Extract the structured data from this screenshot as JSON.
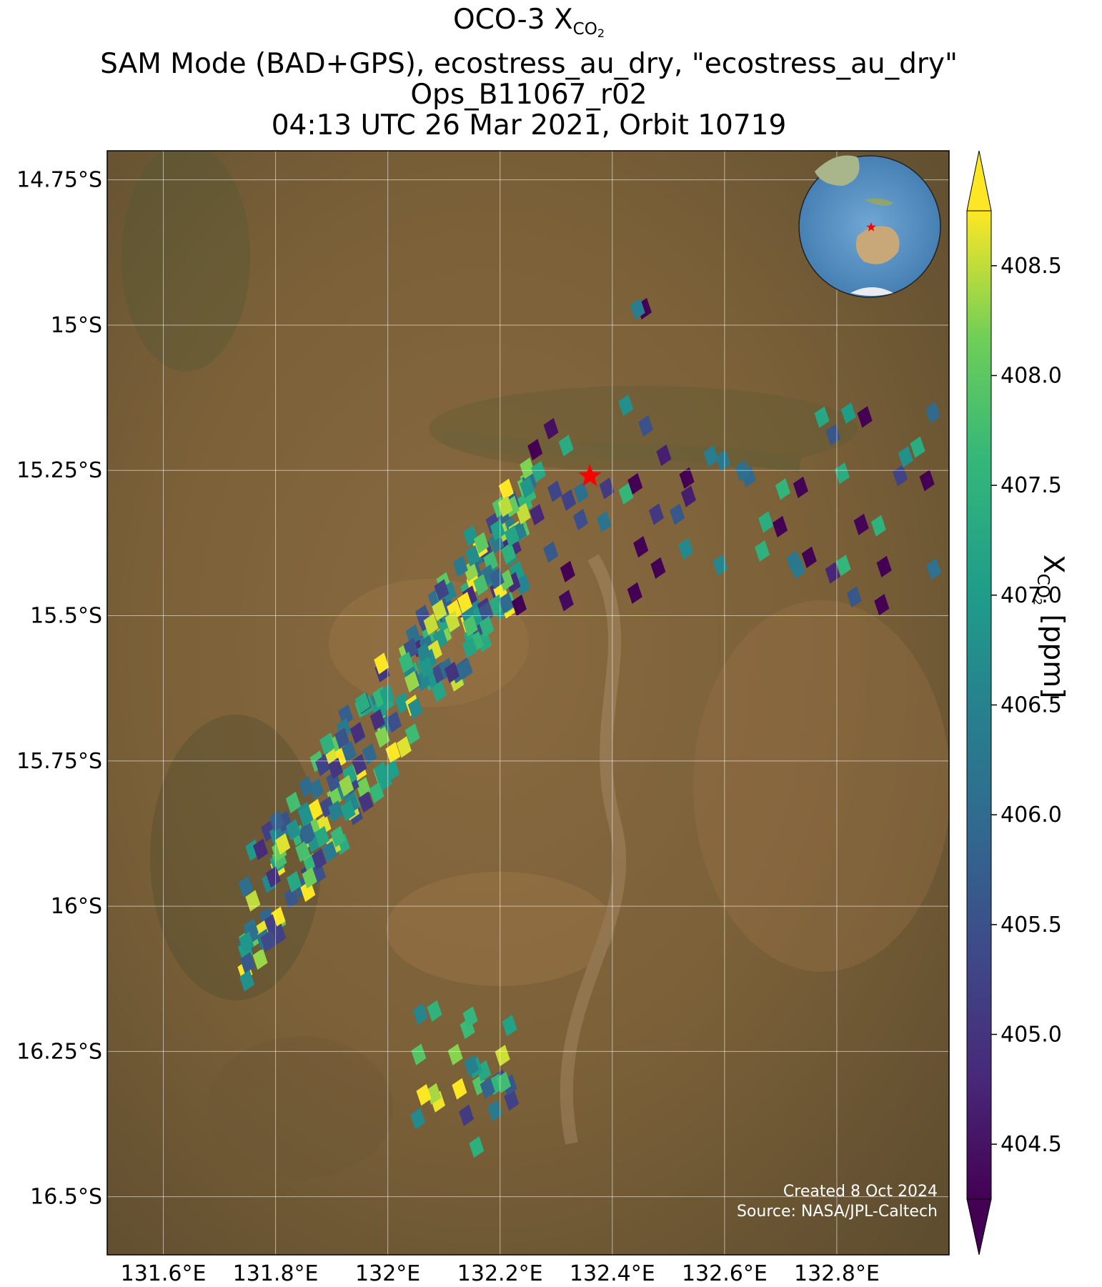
{
  "title": {
    "line1_prefix": "OCO-3 X",
    "line1_sub": "CO",
    "line1_sub2": "2",
    "line2": "SAM Mode (BAD+GPS), ecostress_au_dry, \"ecostress_au_dry\"",
    "line3": "Ops_B11067_r02",
    "line4": "04:13 UTC 26 Mar 2021, Orbit 10719"
  },
  "colorbar": {
    "label_prefix": "X",
    "label_sub": "CO",
    "label_sub2": "2",
    "label_suffix": " [ppm]",
    "range": [
      404.25,
      408.75
    ],
    "ticks": [
      "404.5",
      "405.0",
      "405.5",
      "406.0",
      "406.5",
      "407.0",
      "407.5",
      "408.0",
      "408.5"
    ],
    "tick_values": [
      404.5,
      405.0,
      405.5,
      406.0,
      406.5,
      407.0,
      407.5,
      408.0,
      408.5
    ],
    "extend": "both",
    "colormap": "viridis"
  },
  "map": {
    "lon_range": [
      131.5,
      133.0
    ],
    "lat_range": [
      -16.6,
      -14.7
    ],
    "lon_ticks": [
      "131.6°E",
      "131.8°E",
      "132°E",
      "132.2°E",
      "132.4°E",
      "132.6°E",
      "132.8°E"
    ],
    "lon_tick_values": [
      131.6,
      131.8,
      132.0,
      132.2,
      132.4,
      132.6,
      132.8
    ],
    "lat_ticks": [
      "14.75°S",
      "15°S",
      "15.25°S",
      "15.5°S",
      "15.75°S",
      "16°S",
      "16.25°S",
      "16.5°S"
    ],
    "lat_tick_values": [
      -14.75,
      -15.0,
      -15.25,
      -15.5,
      -15.75,
      -16.0,
      -16.25,
      -16.5
    ],
    "gridlines": true,
    "basemap": "satellite imagery",
    "target": {
      "lon": 132.36,
      "lat": -15.26,
      "marker": "red-star-icon"
    },
    "inset": {
      "type": "globe",
      "marker": "red-star-icon",
      "placement": "top-right"
    }
  },
  "credits": {
    "line1": "Created 8 Oct 2024",
    "line2": "Source: NASA/JPL-Caltech"
  },
  "chart_data": {
    "type": "scatter",
    "x_label": "",
    "y_label": "",
    "value_label": "XCO2 [ppm]",
    "clusters": [
      {
        "lon_range": [
          131.73,
          132.24
        ],
        "lat_range": [
          -16.02,
          -15.32
        ],
        "mean_xco2": 406.9
      },
      {
        "lon_range": [
          132.22,
          132.98
        ],
        "lat_range": [
          -15.48,
          -15.13
        ],
        "mean_xco2": 405.6
      },
      {
        "lon_range": [
          132.03,
          132.22
        ],
        "lat_range": [
          -16.41,
          -16.16
        ],
        "mean_xco2": 407.2
      },
      {
        "lon_range": [
          132.43,
          132.45
        ],
        "lat_range": [
          -14.98,
          -14.92
        ],
        "mean_xco2": 405.0
      }
    ]
  }
}
